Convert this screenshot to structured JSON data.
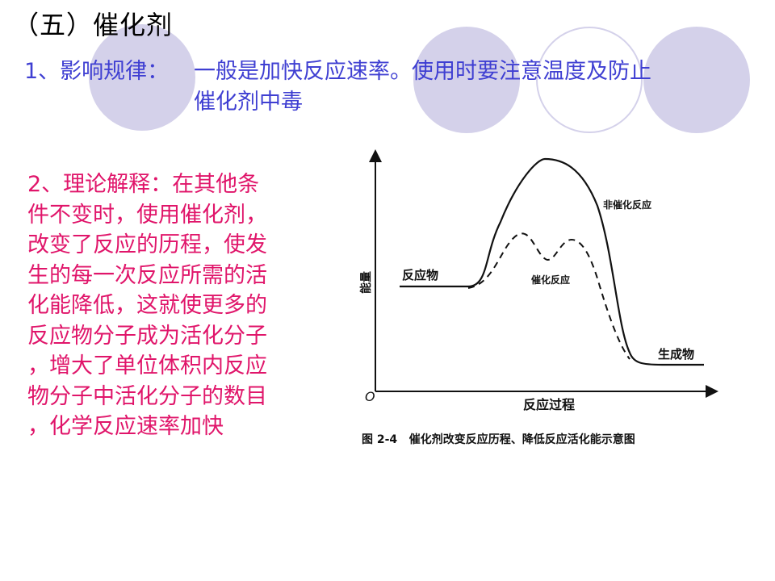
{
  "slide": {
    "title": "（五）催化剂",
    "rule1": {
      "lead": "1、影响规律：",
      "text_line1": "一般是加快反应速率。使用时要注意温度及防止",
      "text_line2": "催化剂中毒"
    },
    "rule2": {
      "lines": [
        "2、理论解释：在其他条",
        "件不变时，使用催化剂，",
        "改变了反应的历程，使发",
        "生的每一次反应所需的活",
        "化能降低，这就使更多的",
        "反应物分子成为活化分子",
        "，增大了单位体积内反应",
        "物分子中活化分子的数目",
        "，化学反应速率加快"
      ]
    }
  },
  "figure": {
    "y_axis_label": "能量",
    "x_axis_label": "反应过程",
    "origin_label": "O",
    "reactant_label": "反应物",
    "product_label": "生成物",
    "uncatalyzed_label": "非催化反应",
    "catalyzed_label": "催化反应",
    "caption": "图 2-4   催化剂改变反应历程、降低反应活化能示意图"
  },
  "colors": {
    "title": "#000000",
    "rule1": "#3f3fd2",
    "rule2": "#e0156a",
    "decoration": "#d4d1ea"
  }
}
